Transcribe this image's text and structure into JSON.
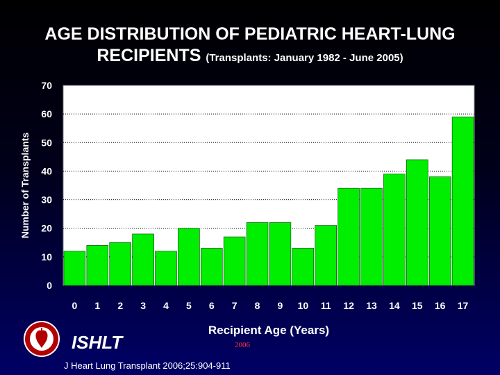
{
  "header": {
    "title_line1": "AGE DISTRIBUTION OF PEDIATRIC HEART-LUNG",
    "title_line2": "RECIPIENTS",
    "subtitle": "(Transplants: January 1982 - June 2005)"
  },
  "footer": {
    "org": "ISHLT",
    "year": "2006",
    "citation": "J Heart Lung Transplant 2006;25:904-911"
  },
  "colors": {
    "bar": "#00ee00",
    "plot_bg": "#ffffff",
    "grid": "#000000",
    "axis_text": "#ffffff",
    "year_text": "#ff3333"
  },
  "chart_data": {
    "type": "bar",
    "categories": [
      "0",
      "1",
      "2",
      "3",
      "4",
      "5",
      "6",
      "7",
      "8",
      "9",
      "10",
      "11",
      "12",
      "13",
      "14",
      "15",
      "16",
      "17"
    ],
    "values": [
      12,
      14,
      15,
      18,
      12,
      20,
      13,
      17,
      22,
      22,
      13,
      21,
      34,
      34,
      39,
      44,
      38,
      59
    ],
    "xlabel": "Recipient Age (Years)",
    "ylabel": "Number of Transplants",
    "ylim": [
      0,
      70
    ],
    "yticks": [
      "0",
      "10",
      "20",
      "30",
      "40",
      "50",
      "60",
      "70"
    ],
    "grid": "horizontal-dotted",
    "legend": "none"
  }
}
